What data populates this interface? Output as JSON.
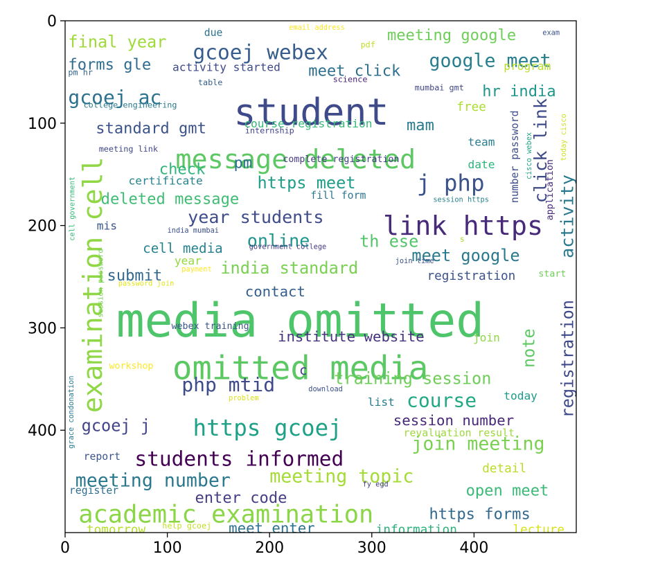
{
  "figure": {
    "x_ticks": [
      0,
      100,
      200,
      300,
      400
    ],
    "y_ticks": [
      0,
      100,
      200,
      300,
      400
    ],
    "x_range": [
      0,
      500
    ],
    "y_range": [
      0,
      500
    ],
    "y_inverted": true,
    "background": "#ffffff",
    "axis_color": "#000000"
  },
  "wordcloud": {
    "palette": [
      "#440154",
      "#3b528b",
      "#21908c",
      "#5dc863",
      "#fde725"
    ],
    "words": [
      {
        "text": "media omitted",
        "x": 50,
        "y": 275,
        "size": 46,
        "color": "#4fc56b"
      },
      {
        "text": "omitted media",
        "x": 105,
        "y": 327,
        "size": 32,
        "color": "#5cc863"
      },
      {
        "text": "student",
        "x": 165,
        "y": 75,
        "size": 36,
        "color": "#3e4a89"
      },
      {
        "text": "message deleted",
        "x": 108,
        "y": 125,
        "size": 26,
        "color": "#5dc863"
      },
      {
        "text": "academic examination",
        "x": 13,
        "y": 473,
        "size": 24,
        "color": "#8bd646"
      },
      {
        "text": "link https",
        "x": 311,
        "y": 190,
        "size": 26,
        "color": "#472a7a"
      },
      {
        "text": "https gcoej",
        "x": 125,
        "y": 389,
        "size": 22,
        "color": "#1fa187"
      },
      {
        "text": "students informed",
        "x": 68,
        "y": 420,
        "size": 20,
        "color": "#440154"
      },
      {
        "text": "gcoej webex",
        "x": 125,
        "y": 23,
        "size": 20,
        "color": "#365c8d"
      },
      {
        "text": "google meet",
        "x": 356,
        "y": 32,
        "size": 18,
        "color": "#277f8e"
      },
      {
        "text": "meeting google",
        "x": 315,
        "y": 8,
        "size": 15,
        "color": "#6ece58"
      },
      {
        "text": "final year",
        "x": 3,
        "y": 14,
        "size": 16,
        "color": "#9fda3a"
      },
      {
        "text": "gcoej ac",
        "x": 3,
        "y": 67,
        "size": 19,
        "color": "#2c728e"
      },
      {
        "text": "forms gle",
        "x": 3,
        "y": 37,
        "size": 15,
        "color": "#2f6c8e"
      },
      {
        "text": "meet click",
        "x": 238,
        "y": 43,
        "size": 15,
        "color": "#2e6f8e"
      },
      {
        "text": "hr india",
        "x": 408,
        "y": 63,
        "size": 15,
        "color": "#1f968b"
      },
      {
        "text": "activity started",
        "x": 105,
        "y": 41,
        "size": 11,
        "color": "#3e4989"
      },
      {
        "text": "standard gmt",
        "x": 30,
        "y": 99,
        "size": 15,
        "color": "#3b528b"
      },
      {
        "text": "course registration",
        "x": 175,
        "y": 96,
        "size": 11,
        "color": "#35b779"
      },
      {
        "text": "mam",
        "x": 334,
        "y": 96,
        "size": 15,
        "color": "#287c8e"
      },
      {
        "text": "pm",
        "x": 165,
        "y": 133,
        "size": 15,
        "color": "#2d708e"
      },
      {
        "text": "j php",
        "x": 344,
        "y": 150,
        "size": 22,
        "color": "#3b528b"
      },
      {
        "text": "check",
        "x": 92,
        "y": 139,
        "size": 15,
        "color": "#31b57b"
      },
      {
        "text": "certificate",
        "x": 62,
        "y": 152,
        "size": 11,
        "color": "#26828e"
      },
      {
        "text": "https meet",
        "x": 188,
        "y": 152,
        "size": 16,
        "color": "#1f9e89"
      },
      {
        "text": "deleted message",
        "x": 35,
        "y": 168,
        "size": 15,
        "color": "#3fbc73"
      },
      {
        "text": "year students",
        "x": 120,
        "y": 185,
        "size": 17,
        "color": "#3e4c8a"
      },
      {
        "text": "online",
        "x": 178,
        "y": 208,
        "size": 17,
        "color": "#1f968b"
      },
      {
        "text": "th ese",
        "x": 288,
        "y": 209,
        "size": 16,
        "color": "#52c569"
      },
      {
        "text": "meet google",
        "x": 339,
        "y": 223,
        "size": 16,
        "color": "#2a788e"
      },
      {
        "text": "cell media",
        "x": 76,
        "y": 217,
        "size": 13,
        "color": "#26828e"
      },
      {
        "text": "india standard",
        "x": 152,
        "y": 235,
        "size": 16,
        "color": "#7ad151"
      },
      {
        "text": "submit",
        "x": 41,
        "y": 243,
        "size": 15,
        "color": "#31688e"
      },
      {
        "text": "contact",
        "x": 176,
        "y": 259,
        "size": 14,
        "color": "#355f8d"
      },
      {
        "text": "registration",
        "x": 354,
        "y": 245,
        "size": 12,
        "color": "#3b528b"
      },
      {
        "text": "institute website",
        "x": 208,
        "y": 303,
        "size": 14,
        "color": "#46337e"
      },
      {
        "text": "php mtid",
        "x": 114,
        "y": 348,
        "size": 19,
        "color": "#3e4a89"
      },
      {
        "text": "training session",
        "x": 263,
        "y": 343,
        "size": 16,
        "color": "#6ece58"
      },
      {
        "text": "course",
        "x": 334,
        "y": 363,
        "size": 19,
        "color": "#22a884"
      },
      {
        "text": "gcoej j",
        "x": 16,
        "y": 389,
        "size": 16,
        "color": "#414487"
      },
      {
        "text": "session number",
        "x": 321,
        "y": 385,
        "size": 14,
        "color": "#482878"
      },
      {
        "text": "join meeting",
        "x": 339,
        "y": 406,
        "size": 18,
        "color": "#7ad151"
      },
      {
        "text": "meeting number",
        "x": 10,
        "y": 442,
        "size": 18,
        "color": "#2a788e"
      },
      {
        "text": "meeting topic",
        "x": 200,
        "y": 438,
        "size": 18,
        "color": "#a5db36"
      },
      {
        "text": "enter code",
        "x": 127,
        "y": 460,
        "size": 15,
        "color": "#433e85"
      },
      {
        "text": "open meet",
        "x": 392,
        "y": 453,
        "size": 15,
        "color": "#3aba76"
      },
      {
        "text": "https forms",
        "x": 356,
        "y": 476,
        "size": 15,
        "color": "#31688e"
      },
      {
        "text": "meet enter",
        "x": 160,
        "y": 490,
        "size": 14,
        "color": "#2c728e"
      },
      {
        "text": "information",
        "x": 304,
        "y": 493,
        "size": 12,
        "color": "#2db27d"
      },
      {
        "text": "lecture",
        "x": 438,
        "y": 493,
        "size": 12,
        "color": "#d8e219"
      },
      {
        "text": "tomorrow",
        "x": 21,
        "y": 493,
        "size": 12,
        "color": "#b5de2b"
      },
      {
        "text": "help gcoej",
        "x": 95,
        "y": 490,
        "size": 8,
        "color": "#c2df23"
      },
      {
        "text": "register",
        "x": 4,
        "y": 455,
        "size": 10,
        "color": "#2e6e8e"
      },
      {
        "text": "report",
        "x": 18,
        "y": 422,
        "size": 10,
        "color": "#3a548c"
      },
      {
        "text": "list",
        "x": 296,
        "y": 368,
        "size": 11,
        "color": "#287d8e"
      },
      {
        "text": "today",
        "x": 429,
        "y": 362,
        "size": 11,
        "color": "#1e9c89"
      },
      {
        "text": "start",
        "x": 463,
        "y": 244,
        "size": 9,
        "color": "#70cf57"
      },
      {
        "text": "join",
        "x": 399,
        "y": 305,
        "size": 11,
        "color": "#8fd744"
      },
      {
        "text": "detail",
        "x": 408,
        "y": 433,
        "size": 12,
        "color": "#bade28"
      },
      {
        "text": "revaluation result",
        "x": 331,
        "y": 399,
        "size": 10,
        "color": "#9dd93b"
      },
      {
        "text": "fill form",
        "x": 240,
        "y": 167,
        "size": 10,
        "color": "#2b758e"
      },
      {
        "text": "date",
        "x": 394,
        "y": 136,
        "size": 11,
        "color": "#2eb37c"
      },
      {
        "text": "team",
        "x": 394,
        "y": 114,
        "size": 11,
        "color": "#287d8e"
      },
      {
        "text": "free",
        "x": 383,
        "y": 80,
        "size": 12,
        "color": "#addc30"
      },
      {
        "text": "program",
        "x": 429,
        "y": 40,
        "size": 11,
        "color": "#b8de29"
      },
      {
        "text": "mumbai gmt",
        "x": 342,
        "y": 62,
        "size": 8,
        "color": "#404688"
      },
      {
        "text": "science",
        "x": 262,
        "y": 54,
        "size": 8,
        "color": "#482173"
      },
      {
        "text": "table",
        "x": 130,
        "y": 57,
        "size": 8,
        "color": "#355f8d"
      },
      {
        "text": "pm hr",
        "x": 3,
        "y": 47,
        "size": 8,
        "color": "#33638d"
      },
      {
        "text": "college engineering",
        "x": 18,
        "y": 79,
        "size": 8,
        "color": "#2a788e"
      },
      {
        "text": "internship",
        "x": 176,
        "y": 104,
        "size": 8,
        "color": "#414487"
      },
      {
        "text": "meeting link",
        "x": 33,
        "y": 122,
        "size": 8,
        "color": "#3e4989"
      },
      {
        "text": "complete registration",
        "x": 213,
        "y": 132,
        "size": 9,
        "color": "#443b84"
      },
      {
        "text": "session https",
        "x": 360,
        "y": 172,
        "size": 7,
        "color": "#25838e"
      },
      {
        "text": "india mumbai",
        "x": 100,
        "y": 202,
        "size": 7,
        "color": "#3c4f8a"
      },
      {
        "text": "government college",
        "x": 180,
        "y": 218,
        "size": 7,
        "color": "#443983"
      },
      {
        "text": "payment",
        "x": 114,
        "y": 240,
        "size": 7,
        "color": "#fde725"
      },
      {
        "text": "password join",
        "x": 52,
        "y": 254,
        "size": 7,
        "color": "#e2e418"
      },
      {
        "text": "join time",
        "x": 323,
        "y": 232,
        "size": 7,
        "color": "#3b528b"
      },
      {
        "text": "webex training",
        "x": 104,
        "y": 295,
        "size": 9,
        "color": "#3a548c"
      },
      {
        "text": "workshop",
        "x": 43,
        "y": 334,
        "size": 9,
        "color": "#fde725"
      },
      {
        "text": "download",
        "x": 238,
        "y": 357,
        "size": 7,
        "color": "#3c4f8a"
      },
      {
        "text": "problem",
        "x": 160,
        "y": 366,
        "size": 7,
        "color": "#dde318"
      },
      {
        "text": "fy egd",
        "x": 291,
        "y": 450,
        "size": 7,
        "color": "#424086"
      },
      {
        "text": "due",
        "x": 136,
        "y": 8,
        "size": 10,
        "color": "#2c728e"
      },
      {
        "text": "email address",
        "x": 219,
        "y": 4,
        "size": 7,
        "color": "#fde725"
      },
      {
        "text": "pdf",
        "x": 289,
        "y": 20,
        "size": 8,
        "color": "#bddf26"
      },
      {
        "text": "exam",
        "x": 467,
        "y": 9,
        "size": 7,
        "color": "#3b528b"
      },
      {
        "text": "mis",
        "x": 31,
        "y": 196,
        "size": 11,
        "color": "#3a548c"
      },
      {
        "text": "year",
        "x": 107,
        "y": 230,
        "size": 11,
        "color": "#95d840"
      },
      {
        "text": "s",
        "x": 386,
        "y": 210,
        "size": 8,
        "color": "#a8db34"
      },
      {
        "text": "c",
        "x": 229,
        "y": 336,
        "size": 13,
        "color": "#433d84"
      }
    ],
    "vertical_words": [
      {
        "text": "examination cell",
        "x": 36,
        "y": 383,
        "size": 26,
        "color": "#8fd744"
      },
      {
        "text": "activity",
        "x": 497,
        "y": 232,
        "size": 17,
        "color": "#2a788e"
      },
      {
        "text": "click link",
        "x": 471,
        "y": 178,
        "size": 17,
        "color": "#3e4989"
      },
      {
        "text": "registration",
        "x": 497,
        "y": 388,
        "size": 16,
        "color": "#3e4989"
      },
      {
        "text": "note",
        "x": 459,
        "y": 339,
        "size": 16,
        "color": "#5ec962"
      },
      {
        "text": "number password",
        "x": 443,
        "y": 178,
        "size": 10,
        "color": "#3e4c8a"
      },
      {
        "text": "application",
        "x": 477,
        "y": 195,
        "size": 9,
        "color": "#472d7b"
      },
      {
        "text": "cisco webex",
        "x": 456,
        "y": 155,
        "size": 7,
        "color": "#20a486"
      },
      {
        "text": "today cisco",
        "x": 490,
        "y": 137,
        "size": 7,
        "color": "#d0e11c"
      },
      {
        "text": "cell government",
        "x": 9,
        "y": 215,
        "size": 7,
        "color": "#38b977"
      },
      {
        "text": "session password",
        "x": 37,
        "y": 290,
        "size": 7,
        "color": "#75d054"
      },
      {
        "text": "grace condonation",
        "x": 8,
        "y": 418,
        "size": 7,
        "color": "#2a788e"
      }
    ]
  }
}
